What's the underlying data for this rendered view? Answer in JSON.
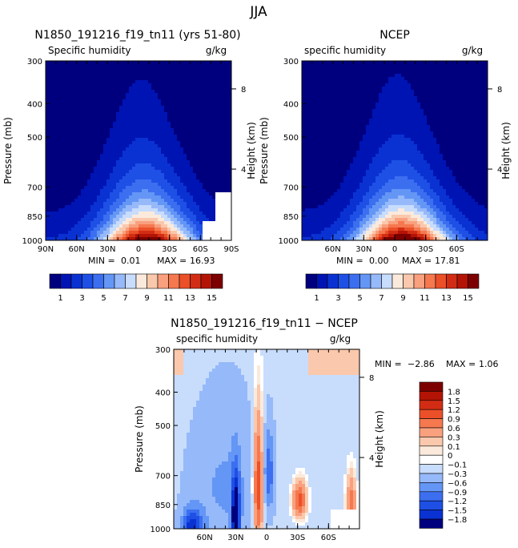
{
  "figure_title": "JJA",
  "chart_data": [
    {
      "type": "contour",
      "title": "N1850_191216_f19_tn11 (yrs 51-80)",
      "subtitle_left": "Specific humidity",
      "units": "g/kg",
      "ylabel": "Pressure (mb)",
      "ylabel_right": "Height (km)",
      "xticks": [
        "90N",
        "60N",
        "30N",
        "0",
        "30S",
        "60S",
        "90S"
      ],
      "yticks": [
        "300",
        "400",
        "500",
        "700",
        "850",
        "1000"
      ],
      "yticks_right": [
        "8",
        "4"
      ],
      "min_label": "MIN =",
      "min_value": "0.01",
      "max_label": "MAX =",
      "max_value": "16.93",
      "field": {
        "peak": 16.93,
        "peak_lat": -5,
        "topography": true
      }
    },
    {
      "type": "contour",
      "title": "NCEP",
      "subtitle_left": "specific humidity",
      "units": "g/kg",
      "ylabel": "Pressure (mb)",
      "ylabel_right": "Height (km)",
      "xticks": [
        "60N",
        "30N",
        "0",
        "30S",
        "60S"
      ],
      "yticks": [
        "300",
        "400",
        "500",
        "700",
        "850",
        "1000"
      ],
      "yticks_right": [
        "8",
        "4"
      ],
      "min_label": "MIN =",
      "min_value": "0.00",
      "max_label": "MAX =",
      "max_value": "17.81",
      "field": {
        "peak": 17.81,
        "peak_lat": -5,
        "topography": false
      }
    },
    {
      "type": "contour",
      "title": "N1850_191216_f19_tn11 − NCEP",
      "subtitle_left": "specific humidity",
      "units": "g/kg",
      "ylabel": "Pressure (mb)",
      "ylabel_right": "Height (km)",
      "xticks": [
        "60N",
        "30N",
        "0",
        "30S",
        "60S"
      ],
      "yticks": [
        "300",
        "400",
        "500",
        "700",
        "850",
        "1000"
      ],
      "yticks_right": [
        "8",
        "4"
      ],
      "min_label": "MIN =",
      "min_value": "−2.86",
      "max_label": "MAX =",
      "max_value": "1.06"
    }
  ],
  "colorbar_abs": {
    "labels": [
      "1",
      "3",
      "5",
      "7",
      "9",
      "11",
      "13",
      "15"
    ],
    "colors": [
      "#00007f",
      "#0014b4",
      "#0a32d2",
      "#1e50e6",
      "#3c6ef0",
      "#6496f5",
      "#96b9fa",
      "#c8dcfc",
      "#fbeadc",
      "#fac8ac",
      "#f9a07e",
      "#f5784f",
      "#eb5028",
      "#d22d14",
      "#b41405",
      "#7d0000"
    ]
  },
  "colorbar_diff": {
    "labels": [
      "1.8",
      "1.5",
      "1.2",
      "0.9",
      "0.6",
      "0.3",
      "0.1",
      "0",
      "−0.1",
      "−0.3",
      "−0.6",
      "−0.9",
      "−1.2",
      "−1.5",
      "−1.8"
    ],
    "colors": [
      "#7d0000",
      "#b41405",
      "#d22d14",
      "#eb5028",
      "#f5784f",
      "#f9a07e",
      "#fac8ac",
      "#fbeadc",
      "#ffffff",
      "#c8dcfc",
      "#96b9fa",
      "#6496f5",
      "#3c6ef0",
      "#1e50e6",
      "#0a32d2",
      "#00007f"
    ]
  }
}
